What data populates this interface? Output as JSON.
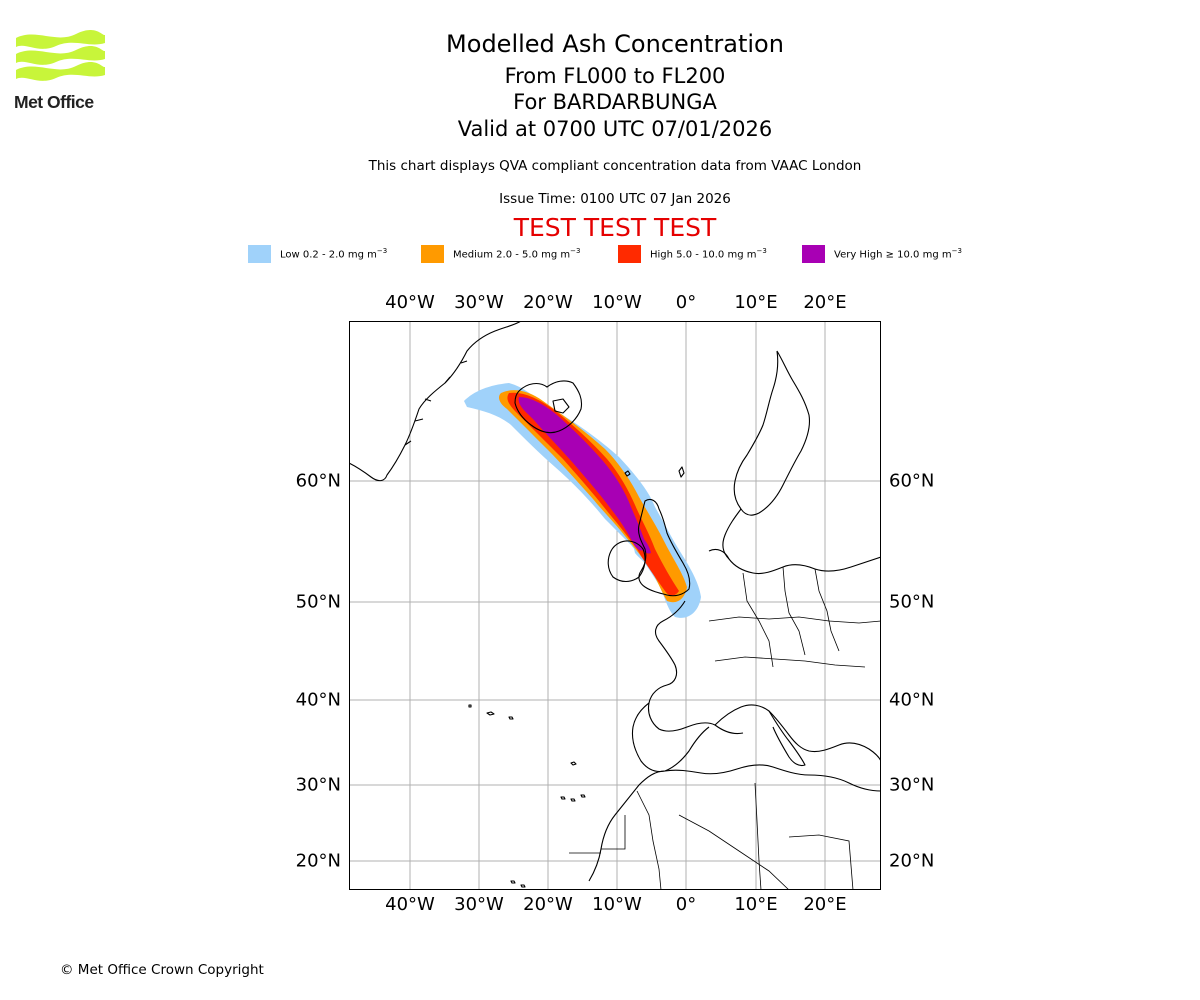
{
  "header": {
    "title": "Modelled Ash Concentration",
    "levels": "From FL000 to FL200",
    "volcano": "For BARDARBUNGA",
    "valid": "Valid at 0700 UTC 07/01/2026",
    "description": "This chart displays QVA compliant concentration data from VAAC London",
    "issue_time": "Issue Time: 0100 UTC 07 Jan 2026",
    "test_banner": "TEST TEST TEST"
  },
  "logo": {
    "name": "Met Office",
    "color": "#c8f53a"
  },
  "legend": [
    {
      "label": "Low 0.2 - 2.0 mg m",
      "unit_exp": "−3",
      "color": "#a0d2fa"
    },
    {
      "label": "Medium 2.0 - 5.0 mg m",
      "unit_exp": "−3",
      "color": "#ff9a00"
    },
    {
      "label": "High 5.0 - 10.0 mg m",
      "unit_exp": "−3",
      "color": "#ff2a00"
    },
    {
      "label": "Very High  ≥  10.0 mg m",
      "unit_exp": "−3",
      "color": "#a800b4"
    }
  ],
  "map": {
    "lon_labels": [
      "40°W",
      "30°W",
      "20°W",
      "10°W",
      "0°",
      "10°E",
      "20°E"
    ],
    "lat_labels": [
      "60°N",
      "50°N",
      "40°N",
      "30°N",
      "20°N"
    ]
  },
  "footer": {
    "copyright": "© Met Office Crown Copyright"
  }
}
